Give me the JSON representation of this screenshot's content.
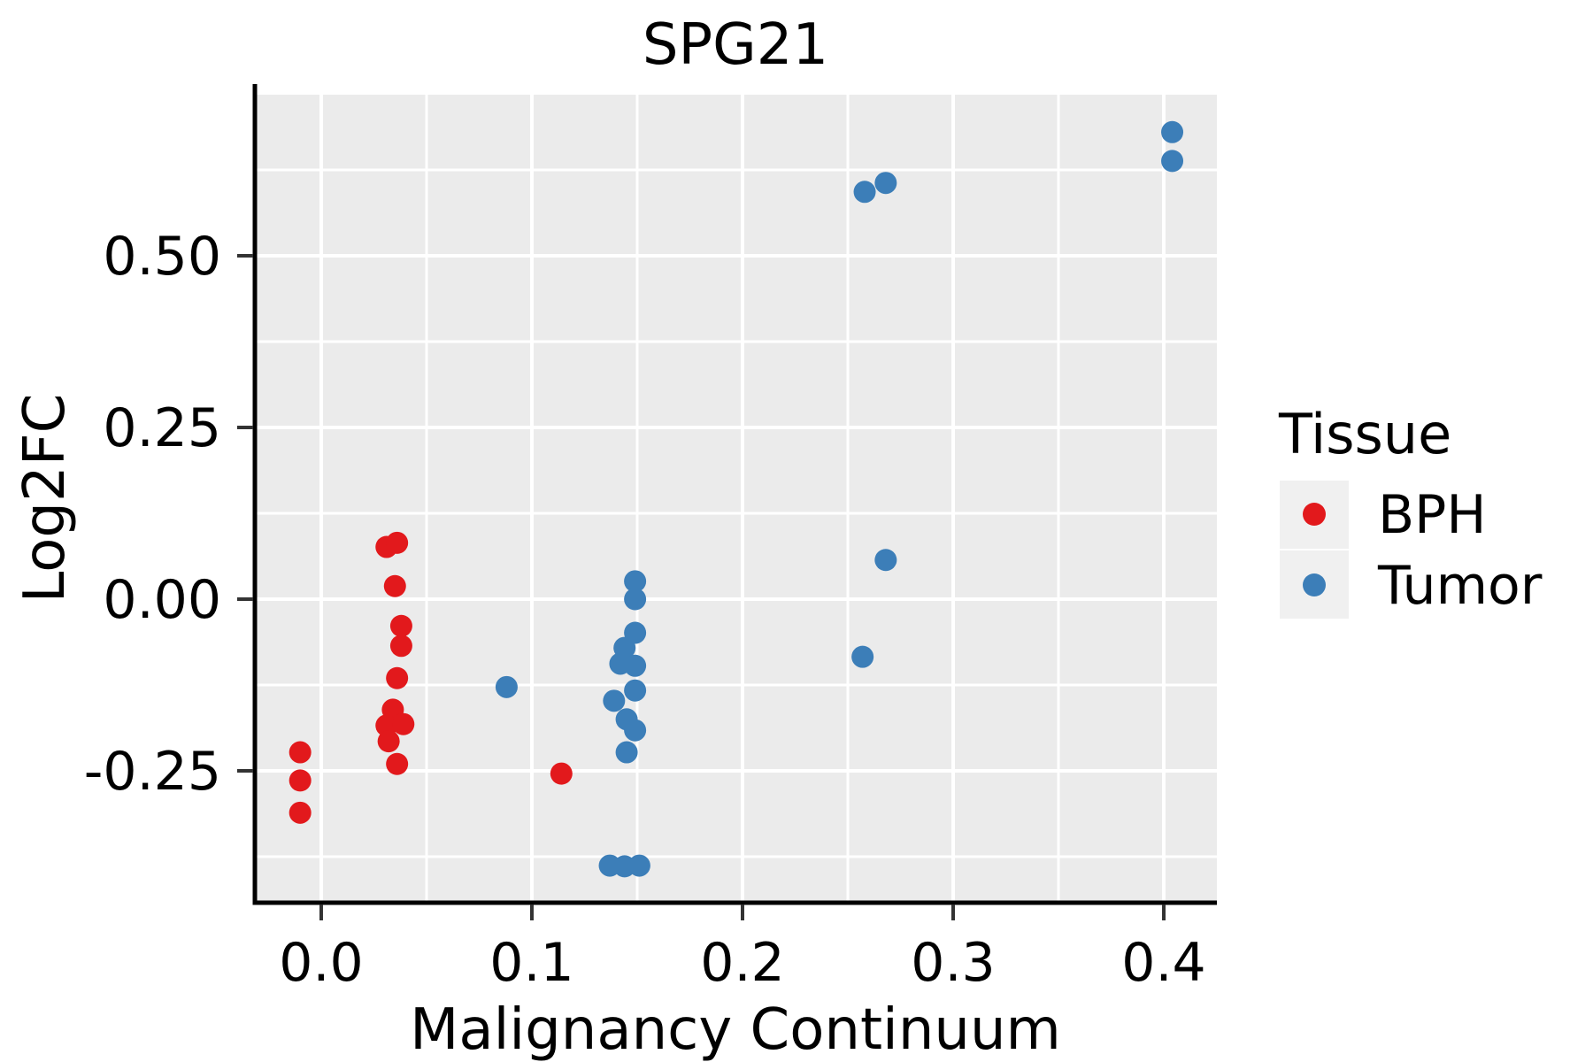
{
  "title": "SPG21",
  "axes": {
    "x": {
      "label": "Malignancy Continuum",
      "tick_labels": [
        "0.0",
        "0.1",
        "0.2",
        "0.3",
        "0.4"
      ],
      "tick_values": [
        0.0,
        0.1,
        0.2,
        0.3,
        0.4
      ],
      "minor_ticks": [
        0.05,
        0.15,
        0.25,
        0.35
      ],
      "range": [
        -0.0315,
        0.4252
      ]
    },
    "y": {
      "label": "Log2FC",
      "tick_labels": [
        "-0.25",
        "0.00",
        "0.25",
        "0.50"
      ],
      "tick_values": [
        -0.25,
        0.0,
        0.25,
        0.5
      ],
      "minor_ticks": [
        -0.375,
        -0.125,
        0.125,
        0.375,
        0.625
      ],
      "range": [
        -0.442,
        0.7345
      ]
    }
  },
  "legend": {
    "title": "Tissue",
    "entries": [
      {
        "label": "BPH",
        "color": "#E2191C"
      },
      {
        "label": "Tumor",
        "color": "#3C7EB8"
      }
    ]
  },
  "colors": {
    "panel_bg": "#EBEBEB",
    "grid": "#FFFFFF",
    "axis": "#000000",
    "tick": "#333333",
    "legend_key_bg": "#F0F0F0"
  },
  "chart_data": {
    "type": "scatter",
    "title": "SPG21",
    "xlabel": "Malignancy Continuum",
    "ylabel": "Log2FC",
    "xlim": [
      -0.0315,
      0.4252
    ],
    "ylim": [
      -0.442,
      0.7345
    ],
    "grid": true,
    "legend_title": "Tissue",
    "legend_position": "right",
    "series": [
      {
        "name": "BPH",
        "color": "#E2191C",
        "points": [
          [
            -0.01,
            -0.223
          ],
          [
            -0.01,
            -0.264
          ],
          [
            -0.01,
            -0.311
          ],
          [
            0.031,
            0.076
          ],
          [
            0.036,
            0.082
          ],
          [
            0.035,
            0.019
          ],
          [
            0.038,
            -0.039
          ],
          [
            0.038,
            -0.068
          ],
          [
            0.036,
            -0.115
          ],
          [
            0.034,
            -0.161
          ],
          [
            0.031,
            -0.184
          ],
          [
            0.039,
            -0.182
          ],
          [
            0.032,
            -0.207
          ],
          [
            0.036,
            -0.24
          ],
          [
            0.114,
            -0.254
          ]
        ]
      },
      {
        "name": "Tumor",
        "color": "#3C7EB8",
        "points": [
          [
            0.088,
            -0.128
          ],
          [
            0.149,
            0.026
          ],
          [
            0.149,
            0.0
          ],
          [
            0.149,
            -0.049
          ],
          [
            0.144,
            -0.071
          ],
          [
            0.142,
            -0.094
          ],
          [
            0.149,
            -0.097
          ],
          [
            0.149,
            -0.133
          ],
          [
            0.139,
            -0.148
          ],
          [
            0.145,
            -0.175
          ],
          [
            0.149,
            -0.191
          ],
          [
            0.145,
            -0.223
          ],
          [
            0.137,
            -0.388
          ],
          [
            0.144,
            -0.389
          ],
          [
            0.151,
            -0.388
          ],
          [
            0.258,
            0.593
          ],
          [
            0.268,
            0.606
          ],
          [
            0.268,
            0.057
          ],
          [
            0.257,
            -0.084
          ],
          [
            0.404,
            0.68
          ],
          [
            0.404,
            0.638
          ]
        ]
      }
    ]
  }
}
